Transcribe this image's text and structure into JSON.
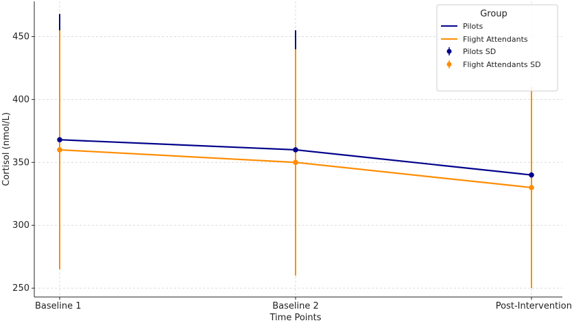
{
  "chart_data": {
    "type": "line",
    "categories": [
      "Baseline 1",
      "Baseline 2",
      "Post-Intervention"
    ],
    "xlabel": "Time Points",
    "ylabel": "Cortisol (nmol/L)",
    "ylim": [
      243,
      478
    ],
    "yticks": [
      250,
      300,
      350,
      400,
      450
    ],
    "grid": true,
    "legend": {
      "title": "Group",
      "placement": "top-right",
      "entries": [
        "Pilots",
        "Flight Attendants",
        "Pilots SD",
        "Flight Attendants SD"
      ]
    },
    "series": [
      {
        "name": "Pilots",
        "color": "#00008b",
        "values": [
          368,
          360,
          340
        ],
        "sd": [
          100,
          95,
          70
        ]
      },
      {
        "name": "Flight Attendants",
        "color": "#ff8c00",
        "values": [
          360,
          350,
          330
        ],
        "sd": [
          95,
          90,
          80
        ]
      }
    ]
  }
}
